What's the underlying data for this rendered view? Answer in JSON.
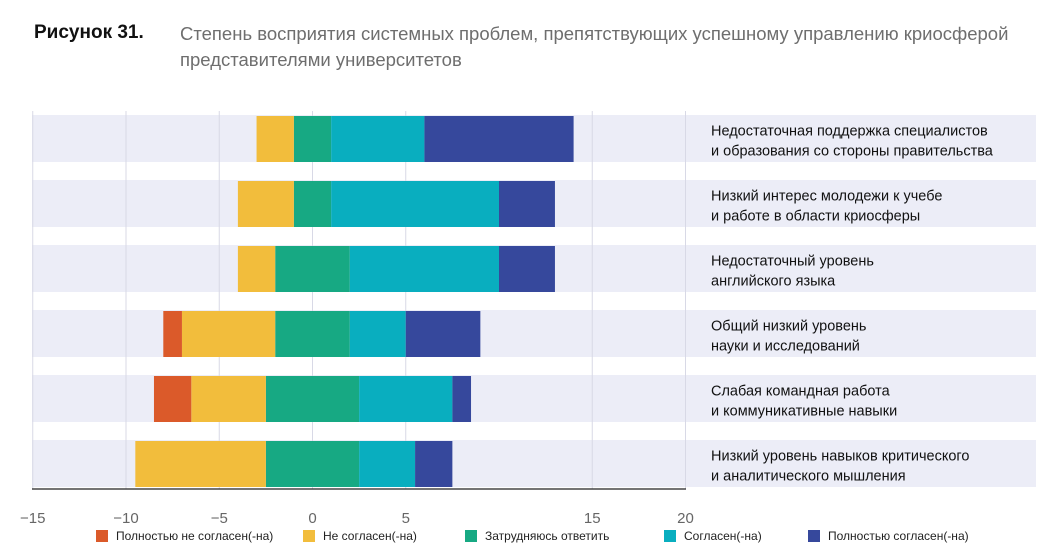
{
  "figure": {
    "label": "Рисунок 31.",
    "title": "Степень восприятия системных проблем, препятствующих успешному управлению криосферой представителями университетов"
  },
  "chart_data": {
    "type": "bar",
    "orientation": "horizontal",
    "stacked": "diverging",
    "xlim": [
      -15,
      20
    ],
    "xticks": [
      -15,
      -10,
      -5,
      0,
      5,
      15,
      20
    ],
    "grid": true,
    "legend_position": "bottom",
    "categories": [
      "Недостаточная поддержка специалистов и образования со стороны правительства",
      "Низкий интерес молодежи к учебе и работе в области криосферы",
      "Недостаточный уровень английского языка",
      "Общий низкий уровень науки и исследований",
      "Слабая командная работа и коммуникативные навыки",
      "Низкий уровень навыков критического и аналитического мышления"
    ],
    "category_lines": [
      [
        "Недостаточная поддержка специалистов",
        "и образования со стороны правительства"
      ],
      [
        "Низкий интерес молодежи к учебе",
        "и работе в области криосферы"
      ],
      [
        "Недостаточный уровень",
        "английского языка"
      ],
      [
        "Общий низкий уровень",
        "науки и исследований"
      ],
      [
        "Слабая командная работа",
        "и коммуникативные навыки"
      ],
      [
        "Низкий уровень навыков критического",
        "и аналитического мышления"
      ]
    ],
    "series": [
      {
        "name": "Полностью не согласен(-на)",
        "color": "#db5a2a",
        "side": "negative",
        "values": [
          0,
          0,
          0,
          1,
          2,
          0
        ]
      },
      {
        "name": "Не согласен(-на)",
        "color": "#f2bd3c",
        "side": "negative",
        "values": [
          2,
          3,
          2,
          5,
          4,
          7
        ]
      },
      {
        "name": "Затрудняюсь ответить",
        "color": "#17a983",
        "side": "neutral",
        "values": [
          2,
          2,
          4,
          4,
          5,
          5
        ]
      },
      {
        "name": "Согласен(-на)",
        "color": "#09aebf",
        "side": "positive",
        "values": [
          5,
          9,
          8,
          3,
          5,
          3
        ]
      },
      {
        "name": "Полностью согласен(-на)",
        "color": "#36489c",
        "side": "positive",
        "values": [
          8,
          3,
          3,
          4,
          1,
          2
        ]
      }
    ],
    "colors": {
      "band": "#ecedf7",
      "gridline": "#d8d9e6",
      "axis": "#222222",
      "tick_label": "#666666",
      "category_label": "#111111"
    }
  }
}
